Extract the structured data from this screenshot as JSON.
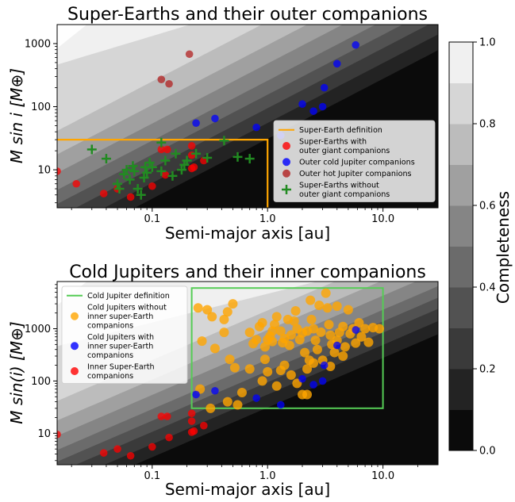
{
  "colors": {
    "sample_a": "#ff0000",
    "sample_b": "#0000ff",
    "sample_c": "#b22222",
    "sample_d": "#228b22",
    "sample_e": "#ffa500",
    "box_orange": "#ffa500",
    "box_green": "#55cc55"
  },
  "chart_data": [
    {
      "type": "scatter",
      "title": "Super-Earths and their outer companions",
      "xlabel": "Semi-major axis [au]",
      "ylabel": "M sin i [M⊕]",
      "xscale": "log",
      "yscale": "log",
      "xlim": [
        0.015,
        30
      ],
      "ylim": [
        2.5,
        2000
      ],
      "xticks": [
        0.1,
        1.0,
        10.0
      ],
      "xtick_labels": [
        "0.1",
        "1.0",
        "10.0"
      ],
      "yticks": [
        10,
        100,
        1000
      ],
      "ytick_labels": [
        "10",
        "100",
        "1000"
      ],
      "legend_position": "lower-right",
      "definition_box": {
        "name": "Super-Earth definition",
        "a_max": 1.0,
        "m_max": 30
      },
      "series": [
        {
          "name": "Super-Earths with outer giant companions",
          "marker": "circle",
          "color_key": "sample_a",
          "points": [
            [
              0.015,
              9.5
            ],
            [
              0.022,
              6
            ],
            [
              0.038,
              4.2
            ],
            [
              0.05,
              5
            ],
            [
              0.065,
              3.7
            ],
            [
              0.1,
              5.5
            ],
            [
              0.12,
              21
            ],
            [
              0.13,
              8.3
            ],
            [
              0.135,
              21
            ],
            [
              0.22,
              10.5
            ],
            [
              0.23,
              11
            ],
            [
              0.22,
              24
            ],
            [
              0.22,
              17
            ],
            [
              0.28,
              14
            ]
          ]
        },
        {
          "name": "Outer cold Jupiter companions",
          "marker": "circle",
          "color_key": "sample_b",
          "points": [
            [
              0.24,
              55
            ],
            [
              0.35,
              65
            ],
            [
              0.8,
              47
            ],
            [
              1.3,
              35
            ],
            [
              2.0,
              110
            ],
            [
              2.5,
              85
            ],
            [
              3.0,
              100
            ],
            [
              3.1,
              200
            ],
            [
              4.0,
              480
            ],
            [
              5.8,
              950
            ]
          ]
        },
        {
          "name": "Outer hot Jupiter companions",
          "marker": "circle",
          "color_key": "sample_c",
          "points": [
            [
              0.12,
              270
            ],
            [
              0.14,
              230
            ],
            [
              0.21,
              680
            ]
          ]
        },
        {
          "name": "Super-Earths without outer giant companions",
          "marker": "plus",
          "color_key": "sample_d",
          "points": [
            [
              0.03,
              21
            ],
            [
              0.04,
              15
            ],
            [
              0.05,
              6
            ],
            [
              0.052,
              5
            ],
            [
              0.057,
              8.5
            ],
            [
              0.06,
              10
            ],
            [
              0.064,
              7
            ],
            [
              0.068,
              11.5
            ],
            [
              0.07,
              9.5
            ],
            [
              0.075,
              5
            ],
            [
              0.08,
              4
            ],
            [
              0.085,
              7.5
            ],
            [
              0.087,
              11
            ],
            [
              0.09,
              9
            ],
            [
              0.095,
              13
            ],
            [
              0.1,
              11
            ],
            [
              0.12,
              9.5
            ],
            [
              0.12,
              27
            ],
            [
              0.13,
              14
            ],
            [
              0.15,
              8
            ],
            [
              0.16,
              18
            ],
            [
              0.18,
              10
            ],
            [
              0.19,
              12
            ],
            [
              0.2,
              14
            ],
            [
              0.24,
              18
            ],
            [
              0.3,
              15.5
            ],
            [
              0.42,
              29
            ],
            [
              0.55,
              16
            ],
            [
              0.7,
              15
            ]
          ]
        }
      ]
    },
    {
      "type": "scatter",
      "title": "Cold Jupiters and their inner companions",
      "xlabel": "Semi-major axis [au]",
      "ylabel": "M sin(i) [M⊕]",
      "xscale": "log",
      "yscale": "log",
      "xlim": [
        0.015,
        30
      ],
      "ylim": [
        2.5,
        8000
      ],
      "xticks": [
        0.1,
        1.0,
        10.0
      ],
      "xtick_labels": [
        "0.1",
        "1.0",
        "10.0"
      ],
      "yticks": [
        10,
        100,
        1000
      ],
      "ytick_labels": [
        "10",
        "100",
        "1000"
      ],
      "legend_position": "upper-left",
      "definition_box": {
        "name": "Cold Jupiter definition",
        "a_min": 0.22,
        "a_max": 10,
        "m_min": 30,
        "m_max": 6000
      },
      "series": [
        {
          "name": "Cold Jupiters without inner super-Earth companions",
          "marker": "circle",
          "color_key": "sample_e",
          "points": [
            [
              0.25,
              2500
            ],
            [
              0.3,
              2300
            ],
            [
              0.33,
              1700
            ],
            [
              0.42,
              1500
            ],
            [
              0.45,
              2100
            ],
            [
              0.5,
              3000
            ],
            [
              0.42,
              850
            ],
            [
              0.35,
              420
            ],
            [
              0.27,
              580
            ],
            [
              0.47,
              260
            ],
            [
              0.52,
              180
            ],
            [
              0.7,
              850
            ],
            [
              0.75,
              520
            ],
            [
              0.8,
              620
            ],
            [
              0.85,
              1100
            ],
            [
              0.9,
              1300
            ],
            [
              0.95,
              450
            ],
            [
              1.0,
              620
            ],
            [
              1.05,
              720
            ],
            [
              1.1,
              900
            ],
            [
              1.1,
              570
            ],
            [
              1.15,
              1200
            ],
            [
              1.2,
              1700
            ],
            [
              1.3,
              900
            ],
            [
              1.35,
              540
            ],
            [
              1.4,
              650
            ],
            [
              1.5,
              1500
            ],
            [
              1.55,
              480
            ],
            [
              1.6,
              760
            ],
            [
              1.7,
              1400
            ],
            [
              1.75,
              2200
            ],
            [
              1.8,
              1000
            ],
            [
              1.9,
              620
            ],
            [
              2.0,
              830
            ],
            [
              2.1,
              350
            ],
            [
              2.2,
              900
            ],
            [
              2.3,
              250
            ],
            [
              2.35,
              3500
            ],
            [
              2.4,
              1500
            ],
            [
              2.5,
              1000
            ],
            [
              2.6,
              600
            ],
            [
              2.7,
              400
            ],
            [
              2.8,
              2800
            ],
            [
              2.9,
              860
            ],
            [
              3.0,
              250
            ],
            [
              3.2,
              4800
            ],
            [
              3.3,
              2500
            ],
            [
              3.4,
              1200
            ],
            [
              3.5,
              750
            ],
            [
              3.6,
              500
            ],
            [
              3.8,
              350
            ],
            [
              4.0,
              600
            ],
            [
              4.2,
              850
            ],
            [
              4.5,
              1100
            ],
            [
              4.7,
              450
            ],
            [
              5.0,
              2300
            ],
            [
              5.2,
              800
            ],
            [
              5.5,
              1000
            ],
            [
              5.8,
              530
            ],
            [
              6.2,
              1300
            ],
            [
              6.5,
              700
            ],
            [
              7.0,
              1000
            ],
            [
              7.5,
              550
            ],
            [
              8.2,
              1050
            ],
            [
              9.3,
              1000
            ],
            [
              0.9,
              100
            ],
            [
              1.0,
              150
            ],
            [
              1.3,
              160
            ],
            [
              1.4,
              200
            ],
            [
              1.6,
              130
            ],
            [
              1.8,
              90
            ],
            [
              2.2,
              170
            ],
            [
              2.5,
              220
            ],
            [
              3.5,
              190
            ],
            [
              4.5,
              300
            ],
            [
              0.6,
              60
            ],
            [
              0.45,
              40
            ],
            [
              0.55,
              35
            ],
            [
              1.2,
              80
            ],
            [
              2.2,
              55
            ],
            [
              0.26,
              70
            ],
            [
              0.32,
              30
            ],
            [
              0.7,
              170
            ],
            [
              0.95,
              260
            ],
            [
              2.0,
              55
            ],
            [
              4.0,
              2700
            ]
          ]
        },
        {
          "name": "Cold Jupiters with inner super-Earth companions",
          "marker": "circle",
          "color_key": "sample_b",
          "points": [
            [
              0.24,
              55
            ],
            [
              0.35,
              65
            ],
            [
              0.8,
              47
            ],
            [
              1.3,
              35
            ],
            [
              2.0,
              110
            ],
            [
              2.5,
              85
            ],
            [
              3.0,
              100
            ],
            [
              3.1,
              200
            ],
            [
              4.0,
              480
            ],
            [
              5.8,
              950
            ]
          ]
        },
        {
          "name": "Inner Super-Earth companions",
          "marker": "circle",
          "color_key": "sample_a",
          "points": [
            [
              0.015,
              9.5
            ],
            [
              0.038,
              4.2
            ],
            [
              0.05,
              5
            ],
            [
              0.065,
              3.7
            ],
            [
              0.1,
              5.5
            ],
            [
              0.12,
              21
            ],
            [
              0.135,
              21
            ],
            [
              0.14,
              8.3
            ],
            [
              0.22,
              10.5
            ],
            [
              0.23,
              11
            ],
            [
              0.22,
              24
            ],
            [
              0.22,
              17
            ],
            [
              0.28,
              14
            ]
          ]
        }
      ]
    }
  ],
  "colorbar": {
    "label": "Completeness",
    "ticks": [
      0.0,
      0.2,
      0.4,
      0.6,
      0.8,
      1.0
    ],
    "tick_labels": [
      "0.0",
      "0.2",
      "0.4",
      "0.6",
      "0.8",
      "1.0"
    ],
    "levels": 10
  },
  "legend1": [
    {
      "key": "line",
      "lines": [
        "Super-Earth definition"
      ]
    },
    {
      "key": "a",
      "lines": [
        "Super-Earths with",
        "outer giant companions"
      ]
    },
    {
      "key": "b",
      "lines": [
        "Outer cold Jupiter companions"
      ]
    },
    {
      "key": "c",
      "lines": [
        "Outer hot Jupiter companions"
      ]
    },
    {
      "key": "d",
      "lines": [
        "Super-Earths without",
        "outer giant companions"
      ]
    }
  ],
  "legend2": [
    {
      "key": "line",
      "lines": [
        "Cold Jupiter definition"
      ]
    },
    {
      "key": "e",
      "lines": [
        "Cold Jupiters without",
        "inner super-Earth",
        "companions"
      ]
    },
    {
      "key": "b",
      "lines": [
        "Cold Jupiters with",
        "inner super-Earth",
        "companions"
      ]
    },
    {
      "key": "a",
      "lines": [
        "Inner Super-Earth",
        "companions"
      ]
    }
  ]
}
